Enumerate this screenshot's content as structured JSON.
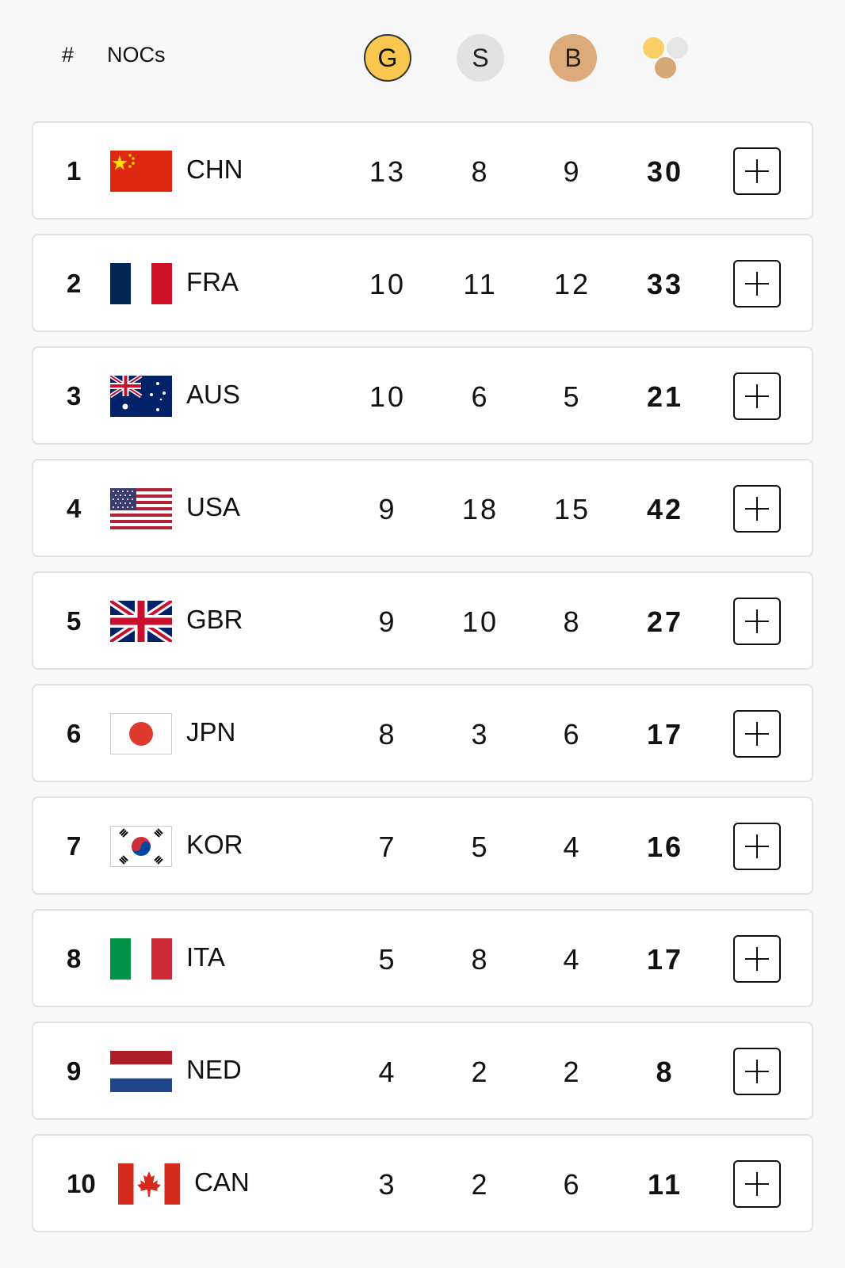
{
  "header": {
    "rank_label": "#",
    "noc_label": "NOCs",
    "gold_label": "G",
    "silver_label": "S",
    "bronze_label": "B",
    "total_icon": "total-medals-icon"
  },
  "colors": {
    "gold": "#f9c74f",
    "silver": "#e2e2e2",
    "bronze": "#dcaa7b"
  },
  "rows": [
    {
      "rank": "1",
      "code": "CHN",
      "gold": "13",
      "silver": "8",
      "bronze": "9",
      "total": "30",
      "flag": "china-flag-icon"
    },
    {
      "rank": "2",
      "code": "FRA",
      "gold": "10",
      "silver": "11",
      "bronze": "12",
      "total": "33",
      "flag": "france-flag-icon"
    },
    {
      "rank": "3",
      "code": "AUS",
      "gold": "10",
      "silver": "6",
      "bronze": "5",
      "total": "21",
      "flag": "australia-flag-icon"
    },
    {
      "rank": "4",
      "code": "USA",
      "gold": "9",
      "silver": "18",
      "bronze": "15",
      "total": "42",
      "flag": "usa-flag-icon"
    },
    {
      "rank": "5",
      "code": "GBR",
      "gold": "9",
      "silver": "10",
      "bronze": "8",
      "total": "27",
      "flag": "uk-flag-icon"
    },
    {
      "rank": "6",
      "code": "JPN",
      "gold": "8",
      "silver": "3",
      "bronze": "6",
      "total": "17",
      "flag": "japan-flag-icon"
    },
    {
      "rank": "7",
      "code": "KOR",
      "gold": "7",
      "silver": "5",
      "bronze": "4",
      "total": "16",
      "flag": "korea-flag-icon"
    },
    {
      "rank": "8",
      "code": "ITA",
      "gold": "5",
      "silver": "8",
      "bronze": "4",
      "total": "17",
      "flag": "italy-flag-icon"
    },
    {
      "rank": "9",
      "code": "NED",
      "gold": "4",
      "silver": "2",
      "bronze": "2",
      "total": "8",
      "flag": "netherlands-flag-icon"
    },
    {
      "rank": "10",
      "code": "CAN",
      "gold": "3",
      "silver": "2",
      "bronze": "6",
      "total": "11",
      "flag": "canada-flag-icon"
    }
  ]
}
